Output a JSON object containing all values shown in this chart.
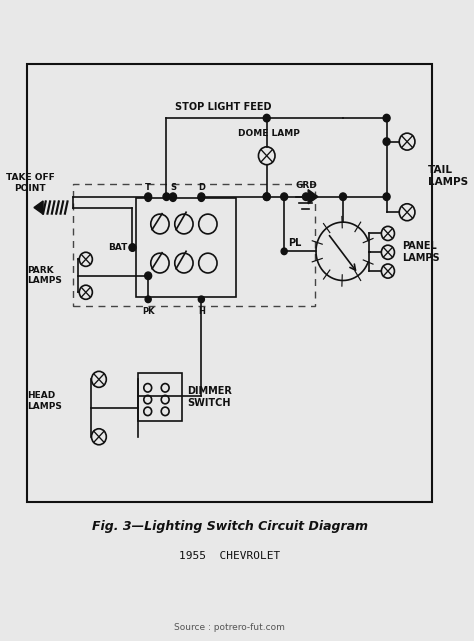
{
  "bg_color": "#ffffff",
  "border_color": "#222222",
  "line_color": "#111111",
  "dashed_color": "#444444",
  "title": "Fig. 3—Lighting Switch Circuit Diagram",
  "subtitle": "1955  CHEVROLET",
  "source": "Source : potrero-fut.com",
  "fig_bg": "#e8e8e8",
  "labels": {
    "stop_light_feed": "STOP LIGHT FEED",
    "dome_lamp": "DOME LAMP",
    "tail_lamps": "TAIL\nLAMPS",
    "take_off_point": "TAKE OFF\nPOINT",
    "bat": "BAT",
    "park_lamps": "PARK\nLAMPS",
    "head_lamps": "HEAD\nLAMPS",
    "dimmer_switch": "DIMMER\nSWITCH",
    "grd": "GRD",
    "pl": "PL",
    "panel_lamps": "PANEL\nLAMPS",
    "pk": "PK",
    "h": "H",
    "t": "T",
    "s": "S",
    "d": "D"
  }
}
